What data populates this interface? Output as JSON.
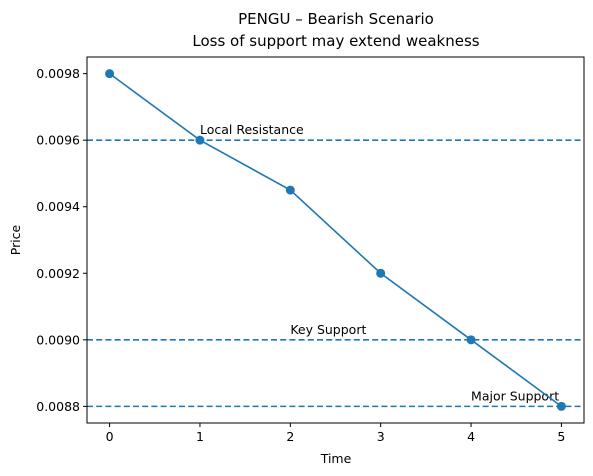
{
  "chart_data": {
    "type": "line",
    "title": "PENGU – Bearish Scenario",
    "subtitle": "Loss of support may extend weakness",
    "xlabel": "Time",
    "ylabel": "Price",
    "xlim": [
      -0.25,
      5.25
    ],
    "ylim": [
      0.00875,
      0.00985
    ],
    "x_ticks": [
      "0",
      "1",
      "2",
      "3",
      "4",
      "5"
    ],
    "y_ticks": [
      "0.0088",
      "0.0090",
      "0.0092",
      "0.0094",
      "0.0096",
      "0.0098"
    ],
    "grid": false,
    "series": [
      {
        "x": [
          0,
          1,
          2,
          3,
          4,
          5
        ],
        "values": [
          0.0098,
          0.0096,
          0.00945,
          0.0092,
          0.009,
          0.0088
        ],
        "color": "#1f77b4"
      }
    ],
    "hlines": [
      {
        "y": 0.0096,
        "label": "Local Resistance",
        "label_x": 1,
        "color": "#1f77b4"
      },
      {
        "y": 0.009,
        "label": "Key Support",
        "label_x": 2,
        "color": "#1f77b4"
      },
      {
        "y": 0.0088,
        "label": "Major Support",
        "label_x": 4,
        "color": "#1f77b4"
      }
    ]
  }
}
